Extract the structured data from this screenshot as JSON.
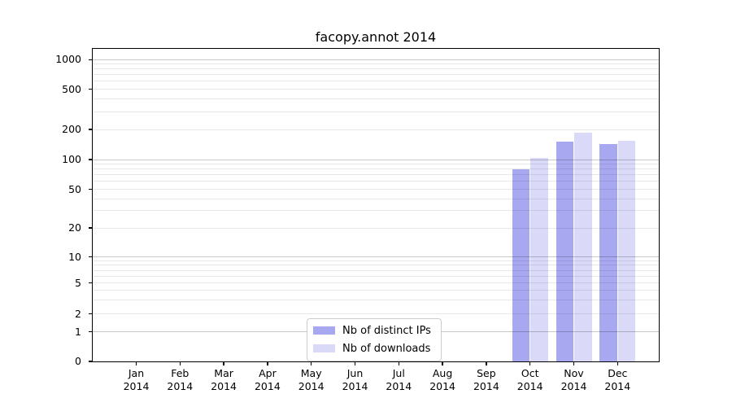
{
  "chart_data": {
    "type": "bar",
    "title": "facopy.annot 2014",
    "categories": [
      "Jan",
      "Feb",
      "Mar",
      "Apr",
      "May",
      "Jun",
      "Jul",
      "Aug",
      "Sep",
      "Oct",
      "Nov",
      "Dec"
    ],
    "year": "2014",
    "series": [
      {
        "name": "Nb of distinct IPs",
        "color": "#a8a8f0",
        "values": [
          null,
          null,
          null,
          null,
          null,
          null,
          null,
          null,
          null,
          79,
          150,
          143
        ]
      },
      {
        "name": "Nb of downloads",
        "color": "#dadaf8",
        "values": [
          null,
          null,
          null,
          null,
          null,
          null,
          null,
          null,
          null,
          103,
          185,
          155
        ]
      }
    ],
    "yscale": "symlog",
    "ylim": [
      0,
      1300
    ],
    "yticks": [
      {
        "label": "1000",
        "value": 1000
      },
      {
        "label": "500",
        "value": 500
      },
      {
        "label": "200",
        "value": 200
      },
      {
        "label": "100",
        "value": 100
      },
      {
        "label": "50",
        "value": 50
      },
      {
        "label": "20",
        "value": 20
      },
      {
        "label": "10",
        "value": 10
      },
      {
        "label": "5",
        "value": 5
      },
      {
        "label": "2",
        "value": 2
      },
      {
        "label": "1",
        "value": 1
      },
      {
        "label": "0",
        "value": 0
      }
    ],
    "grid": true,
    "legend_position": "lower center"
  }
}
